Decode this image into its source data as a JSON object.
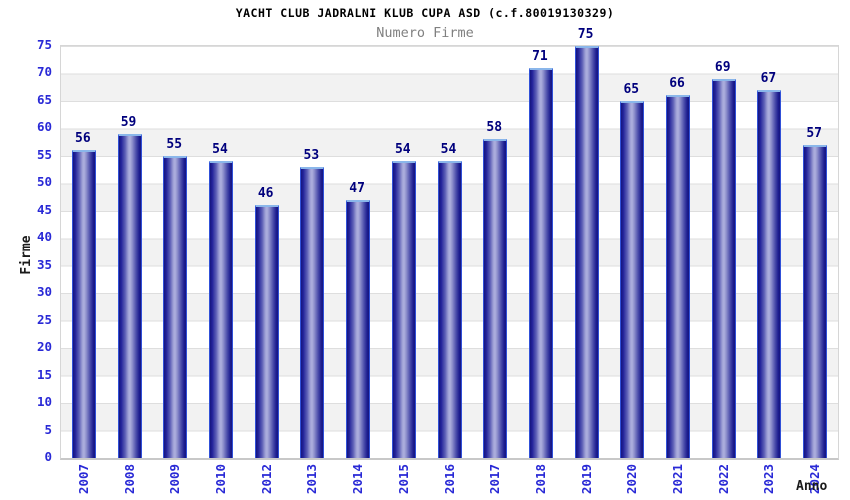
{
  "header": {
    "title": "YACHT CLUB JADRALNI KLUB CUPA ASD (c.f.80019130329)",
    "subtitle": "Numero Firme"
  },
  "chart_data": {
    "type": "bar",
    "title": "YACHT CLUB JADRALNI KLUB CUPA ASD (c.f.80019130329)",
    "subtitle": "Numero Firme",
    "xlabel": "Anno",
    "ylabel": "Firme",
    "categories": [
      "2007",
      "2008",
      "2009",
      "2010",
      "2012",
      "2013",
      "2014",
      "2015",
      "2016",
      "2017",
      "2018",
      "2019",
      "2020",
      "2021",
      "2022",
      "2023",
      "2024"
    ],
    "values": [
      56,
      59,
      55,
      54,
      46,
      53,
      47,
      54,
      54,
      58,
      71,
      75,
      65,
      66,
      69,
      67,
      57
    ],
    "ylim": [
      0,
      75
    ],
    "ytick_step": 5,
    "grid": true,
    "band_fill": true,
    "legend": null
  },
  "colors": {
    "title_text": "#000000",
    "subtitle_text": "#808080",
    "tick_label_blue": "#2929d6",
    "value_label_navy": "#00007d",
    "band_gray": "#f2f2f2",
    "gridline": "#dedede",
    "bar_dark": "#16167e",
    "bar_highlight": "#aeb0de",
    "bar_side_border": "#3050d8",
    "bar_top_cap": "#8ab6ea"
  }
}
